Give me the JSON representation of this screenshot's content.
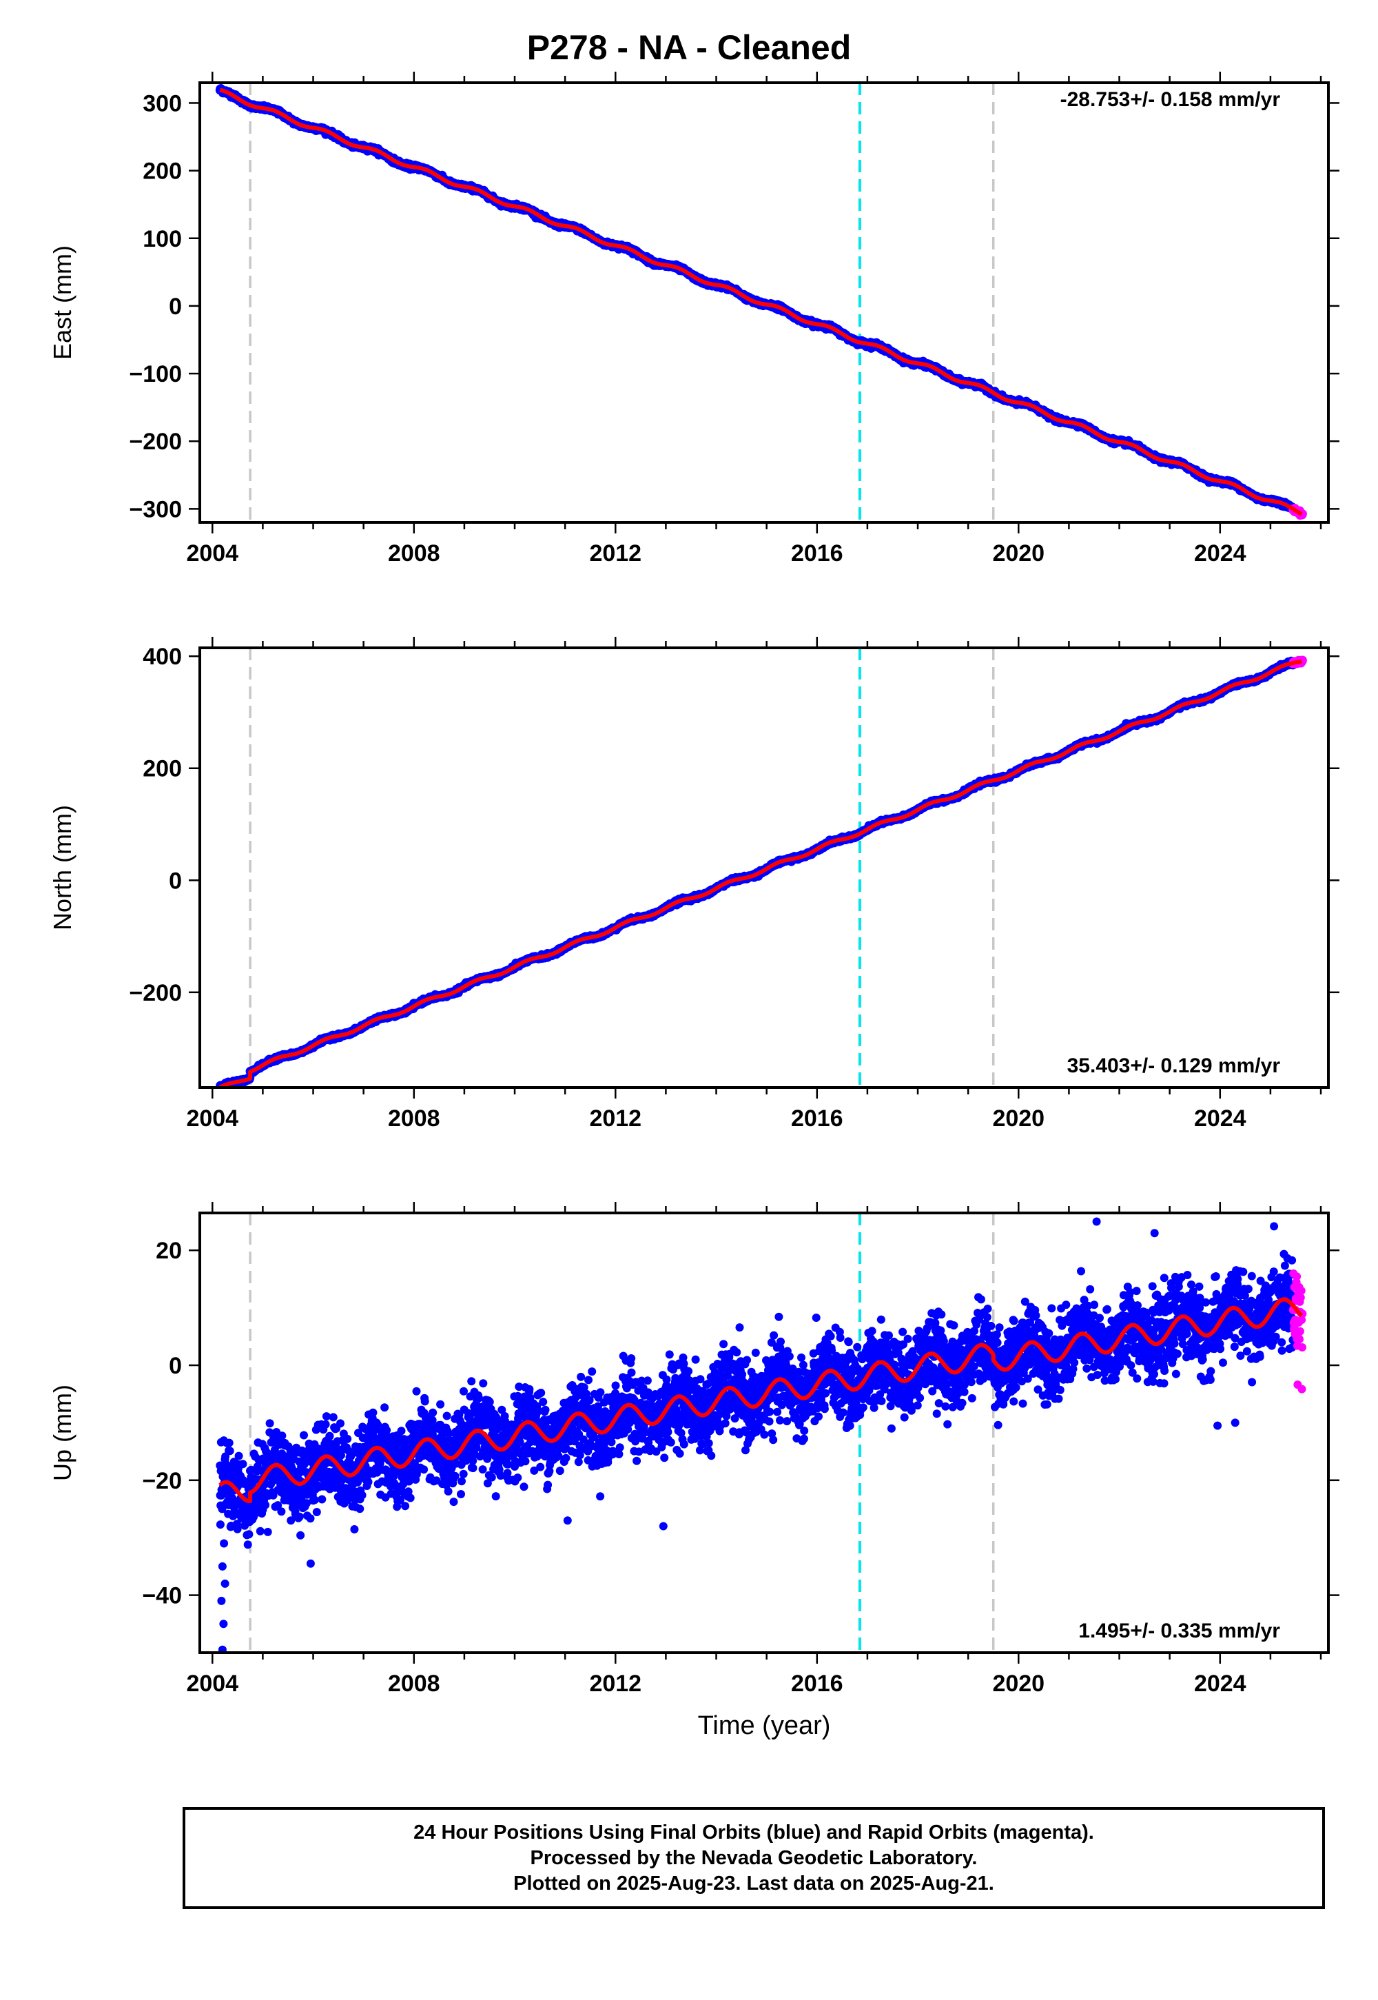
{
  "figure": {
    "title": "P278  - NA - Cleaned",
    "footer": [
      "24 Hour Positions Using Final Orbits (blue) and Rapid Orbits (magenta).",
      "Processed by the Nevada Geodetic Laboratory.",
      "Plotted on 2025-Aug-23. Last data on 2025-Aug-21."
    ],
    "colors": {
      "final_orbits": "#0000ff",
      "rapid_orbits": "#ff00ff",
      "model": "#ff0000",
      "equipment_change": "#c8c8c8",
      "earthquake": "#00e5ee"
    }
  },
  "chart_data": [
    {
      "type": "scatter",
      "panel": "east",
      "ylabel": "East (mm)",
      "xlabel": "",
      "rate_label": "-28.753+/- 0.158 mm/yr",
      "rate_position": "top-right",
      "xlim": [
        2003.75,
        2026.15
      ],
      "ylim": [
        -320,
        330
      ],
      "xticks": [
        2004,
        2008,
        2012,
        2016,
        2020,
        2024
      ],
      "yticks": [
        300,
        200,
        100,
        0,
        -100,
        -200,
        -300
      ],
      "trend": {
        "x0": 2004.15,
        "y0": 317,
        "x1": 2025.62,
        "y1": -306
      },
      "seasonal_amplitude": 3,
      "noise_sd": 1.6,
      "offsets": [],
      "vertical_lines": [
        {
          "x": 2004.75,
          "kind": "equipment_change"
        },
        {
          "x": 2016.85,
          "kind": "earthquake"
        },
        {
          "x": 2019.5,
          "kind": "equipment_change"
        }
      ],
      "rapid_points": {
        "x_from": 2025.45,
        "x_to": 2025.64
      }
    },
    {
      "type": "scatter",
      "panel": "north",
      "ylabel": "North (mm)",
      "xlabel": "",
      "rate_label": "35.403+/- 0.129 mm/yr",
      "rate_position": "bottom-right",
      "xlim": [
        2003.75,
        2026.15
      ],
      "ylim": [
        -370,
        415
      ],
      "xticks": [
        2004,
        2008,
        2012,
        2016,
        2020,
        2024
      ],
      "yticks": [
        400,
        200,
        0,
        -200
      ],
      "trend": {
        "x0": 2004.15,
        "y0": -360,
        "x1": 2025.62,
        "y1": 393
      },
      "seasonal_amplitude": 3,
      "noise_sd": 1.6,
      "offsets": [
        {
          "x": 2004.75,
          "before": -12,
          "after": 0
        }
      ],
      "vertical_lines": [
        {
          "x": 2004.75,
          "kind": "equipment_change"
        },
        {
          "x": 2016.85,
          "kind": "earthquake"
        },
        {
          "x": 2019.5,
          "kind": "equipment_change"
        }
      ],
      "rapid_points": {
        "x_from": 2025.45,
        "x_to": 2025.64
      }
    },
    {
      "type": "scatter",
      "panel": "up",
      "ylabel": "Up (mm)",
      "xlabel": "Time (year)",
      "rate_label": "1.495+/- 0.335 mm/yr",
      "rate_position": "bottom-right",
      "xlim": [
        2003.75,
        2026.15
      ],
      "ylim": [
        -50,
        26.5
      ],
      "xticks": [
        2004,
        2008,
        2012,
        2016,
        2020,
        2024
      ],
      "yticks": [
        20,
        0,
        -20,
        -40
      ],
      "trend": {
        "x0": 2004.15,
        "y0": -21,
        "x1": 2025.62,
        "y1": 11
      },
      "seasonal_amplitude": 2,
      "noise_sd": 3.3,
      "offsets": [
        {
          "x": 2004.75,
          "before": -1.5,
          "after": 0
        },
        {
          "x": 2019.5,
          "before": 0,
          "after": -1
        }
      ],
      "vertical_lines": [
        {
          "x": 2004.75,
          "kind": "equipment_change"
        },
        {
          "x": 2016.85,
          "kind": "earthquake"
        },
        {
          "x": 2019.5,
          "kind": "equipment_change"
        }
      ],
      "rapid_points": {
        "x_from": 2025.45,
        "x_to": 2025.64
      },
      "outliers": [
        {
          "x": 2004.2,
          "y": -49.5
        },
        {
          "x": 2004.22,
          "y": -45
        },
        {
          "x": 2004.18,
          "y": -41
        },
        {
          "x": 2004.25,
          "y": -38
        },
        {
          "x": 2004.2,
          "y": -35
        },
        {
          "x": 2004.23,
          "y": -31
        },
        {
          "x": 2005.95,
          "y": -34.5
        },
        {
          "x": 2011.05,
          "y": -27
        },
        {
          "x": 2012.95,
          "y": -28
        },
        {
          "x": 2005.1,
          "y": -29
        },
        {
          "x": 2021.55,
          "y": 25
        },
        {
          "x": 2022.7,
          "y": 23
        },
        {
          "x": 2023.95,
          "y": -10.5
        },
        {
          "x": 2024.3,
          "y": -10
        }
      ]
    }
  ]
}
